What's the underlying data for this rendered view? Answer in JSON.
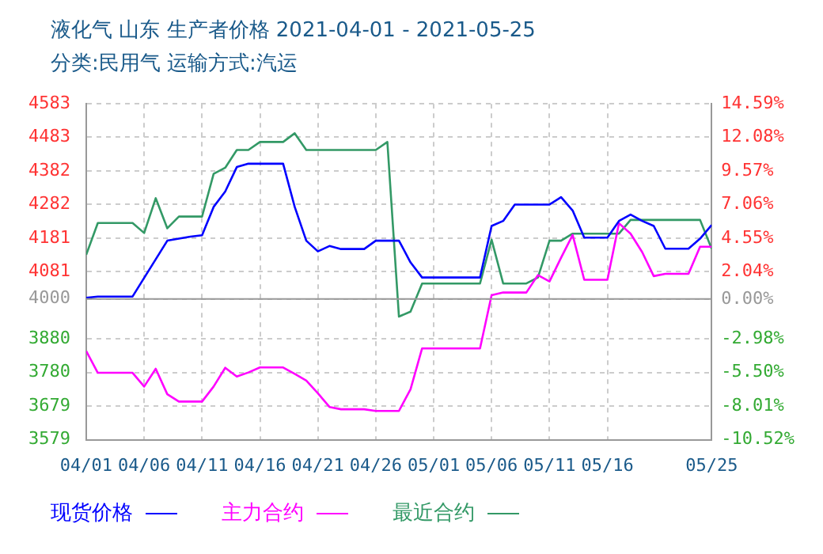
{
  "chart_data": {
    "type": "line",
    "title": "液化气 山东 生产者价格 2021-04-01 - 2021-05-25",
    "subtitle": "分类:民用气 运输方式:汽运",
    "xlim": [
      "--04-01",
      "--05-25"
    ],
    "xticks": [
      {
        "value": "--04-01",
        "label": "04/01"
      },
      {
        "value": "--04-06",
        "label": "04/06"
      },
      {
        "value": "--04-11",
        "label": "04/11"
      },
      {
        "value": "--04-16",
        "label": "04/16"
      },
      {
        "value": "--04-21",
        "label": "04/21"
      },
      {
        "value": "--04-26",
        "label": "04/26"
      },
      {
        "value": "--05-01",
        "label": "05/01"
      },
      {
        "value": "--05-06",
        "label": "05/06"
      },
      {
        "value": "--05-11",
        "label": "05/11"
      },
      {
        "value": "--05-16",
        "label": "05/16"
      },
      {
        "value": "--05-25",
        "label": "05/25"
      }
    ],
    "ylim": [
      3579,
      4583
    ],
    "yticks": [
      3579,
      3679,
      3780,
      3880,
      4000,
      4081,
      4181,
      4282,
      4382,
      4483,
      4583
    ],
    "y2lim": [
      -10.52,
      14.59
    ],
    "y2ticks": [
      {
        "value": -10.52,
        "label": "-10.52%"
      },
      {
        "value": -8.01,
        "label": "-8.01%"
      },
      {
        "value": -5.5,
        "label": "-5.50%"
      },
      {
        "value": -2.98,
        "label": "-2.98%"
      },
      {
        "value": 0,
        "label": "0.00%"
      },
      {
        "value": 2.04,
        "label": "2.04%"
      },
      {
        "value": 4.55,
        "label": "4.55%"
      },
      {
        "value": 7.06,
        "label": "7.06%"
      },
      {
        "value": 9.57,
        "label": "9.57%"
      },
      {
        "value": 12.08,
        "label": "12.08%"
      },
      {
        "value": 14.59,
        "label": "14.59%"
      }
    ],
    "grid": true,
    "legend": "bottom left",
    "marker": "none",
    "line_style": "solid",
    "ref_lines": [
      {
        "axis": "y",
        "value": 4000,
        "color": "#999999",
        "line_style": "solid"
      }
    ],
    "series": [
      {
        "name": "现货价格",
        "color": "#0000ff",
        "x": [
          "--04-01",
          "--04-02",
          "--04-05",
          "--04-08",
          "--04-10",
          "--04-11",
          "--04-12",
          "--04-13",
          "--04-14",
          "--04-15",
          "--04-18",
          "--04-19",
          "--04-20",
          "--04-21",
          "--04-22",
          "--04-23",
          "--04-25",
          "--04-26",
          "--04-28",
          "--04-29",
          "--04-30",
          "--05-05",
          "--05-06",
          "--05-07",
          "--05-08",
          "--05-11",
          "--05-12",
          "--05-13",
          "--05-14",
          "--05-16",
          "--05-17",
          "--05-18",
          "--05-19",
          "--05-20",
          "--05-21",
          "--05-23",
          "--05-24",
          "--05-25"
        ],
        "values": [
          4003,
          4007,
          4007,
          4174,
          4186,
          4190,
          4275,
          4321,
          4394,
          4404,
          4404,
          4275,
          4174,
          4142,
          4158,
          4149,
          4149,
          4174,
          4174,
          4109,
          4064,
          4064,
          4218,
          4233,
          4282,
          4282,
          4304,
          4264,
          4183,
          4183,
          4233,
          4252,
          4233,
          4218,
          4150,
          4150,
          4180,
          4221
        ]
      },
      {
        "name": "主力合约",
        "color": "#ff00ff",
        "x": [
          "--04-01",
          "--04-02",
          "--04-05",
          "--04-06",
          "--04-07",
          "--04-08",
          "--04-09",
          "--04-11",
          "--04-12",
          "--04-13",
          "--04-14",
          "--04-15",
          "--04-16",
          "--04-18",
          "--04-19",
          "--04-20",
          "--04-21",
          "--04-22",
          "--04-23",
          "--04-25",
          "--04-26",
          "--04-28",
          "--04-29",
          "--04-30",
          "--05-05",
          "--05-06",
          "--05-07",
          "--05-09",
          "--05-10",
          "--05-11",
          "--05-12",
          "--05-13",
          "--05-14",
          "--05-16",
          "--05-17",
          "--05-18",
          "--05-19",
          "--05-20",
          "--05-21",
          "--05-23",
          "--05-24",
          "--05-25"
        ],
        "values": [
          3844,
          3779,
          3779,
          3738,
          3791,
          3715,
          3693,
          3693,
          3738,
          3794,
          3768,
          3780,
          3795,
          3795,
          3776,
          3756,
          3718,
          3677,
          3670,
          3670,
          3665,
          3665,
          3730,
          3852,
          3852,
          4011,
          4019,
          4019,
          4071,
          4052,
          4123,
          4191,
          4057,
          4057,
          4226,
          4195,
          4140,
          4068,
          4075,
          4075,
          4156,
          4156
        ]
      },
      {
        "name": "最近合约",
        "color": "#339966",
        "x": [
          "--04-01",
          "--04-02",
          "--04-05",
          "--04-06",
          "--04-07",
          "--04-08",
          "--04-09",
          "--04-11",
          "--04-12",
          "--04-13",
          "--04-14",
          "--04-15",
          "--04-16",
          "--04-18",
          "--04-19",
          "--04-20",
          "--04-26",
          "--04-27",
          "--04-28",
          "--04-29",
          "--04-30",
          "--05-05",
          "--05-06",
          "--05-07",
          "--05-09",
          "--05-10",
          "--05-11",
          "--05-12",
          "--05-13",
          "--05-17",
          "--05-18",
          "--05-24",
          "--05-25"
        ],
        "values": [
          4132,
          4227,
          4227,
          4197,
          4301,
          4211,
          4246,
          4246,
          4374,
          4392,
          4445,
          4445,
          4469,
          4469,
          4495,
          4445,
          4445,
          4469,
          3947,
          3962,
          4046,
          4046,
          4177,
          4046,
          4046,
          4064,
          4174,
          4174,
          4195,
          4195,
          4236,
          4236,
          4150
        ]
      }
    ]
  }
}
